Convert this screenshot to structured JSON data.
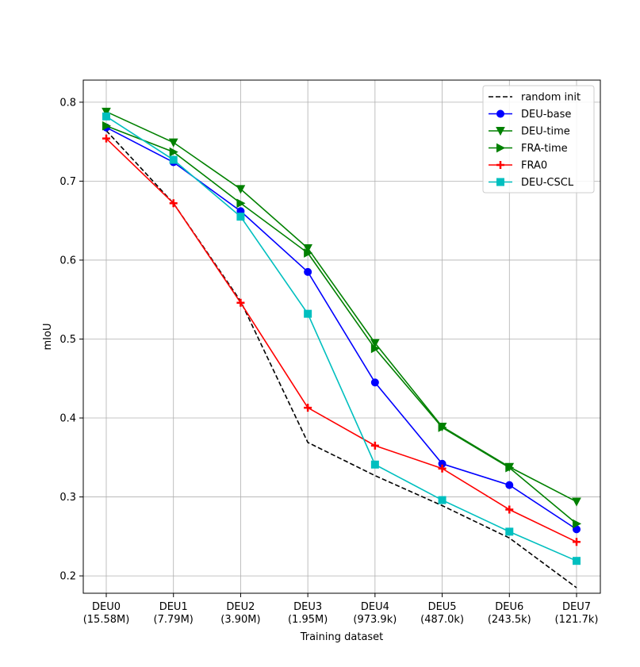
{
  "chart_data": {
    "type": "line",
    "title": "",
    "xlabel": "Training dataset",
    "ylabel": "mIoU",
    "categories": [
      {
        "name": "DEU0",
        "size": "(15.58M)"
      },
      {
        "name": "DEU1",
        "size": "(7.79M)"
      },
      {
        "name": "DEU2",
        "size": "(3.90M)"
      },
      {
        "name": "DEU3",
        "size": "(1.95M)"
      },
      {
        "name": "DEU4",
        "size": "(973.9k)"
      },
      {
        "name": "DEU5",
        "size": "(487.0k)"
      },
      {
        "name": "DEU6",
        "size": "(243.5k)"
      },
      {
        "name": "DEU7",
        "size": "(121.7k)"
      }
    ],
    "ylim": [
      0.178,
      0.828
    ],
    "yticks": [
      0.2,
      0.3,
      0.4,
      0.5,
      0.6,
      0.7,
      0.8
    ],
    "ytick_labels": [
      "0.2",
      "0.3",
      "0.4",
      "0.5",
      "0.6",
      "0.7",
      "0.8"
    ],
    "grid": true,
    "legend_position": "top-right",
    "series": [
      {
        "name": "random init",
        "color": "#000000",
        "linestyle": "dashed",
        "marker": "none",
        "values": [
          0.764,
          0.672,
          0.548,
          0.369,
          0.327,
          0.289,
          0.248,
          0.185
        ]
      },
      {
        "name": "DEU-base",
        "color": "#0000ff",
        "linestyle": "solid",
        "marker": "circle",
        "values": [
          0.768,
          0.724,
          0.662,
          0.585,
          0.445,
          0.342,
          0.315,
          0.259
        ]
      },
      {
        "name": "DEU-time",
        "color": "#008000",
        "linestyle": "solid",
        "marker": "triangle-down",
        "values": [
          0.788,
          0.749,
          0.69,
          0.615,
          0.495,
          0.389,
          0.338,
          0.294
        ]
      },
      {
        "name": "FRA-time",
        "color": "#008000",
        "linestyle": "solid",
        "marker": "triangle-right",
        "values": [
          0.77,
          0.737,
          0.672,
          0.609,
          0.488,
          0.388,
          0.337,
          0.266
        ]
      },
      {
        "name": "FRA0",
        "color": "#ff0000",
        "linestyle": "solid",
        "marker": "plus",
        "values": [
          0.754,
          0.672,
          0.546,
          0.413,
          0.365,
          0.336,
          0.284,
          0.243
        ]
      },
      {
        "name": "DEU-CSCL",
        "color": "#00bfbf",
        "linestyle": "solid",
        "marker": "square",
        "values": [
          0.782,
          0.727,
          0.655,
          0.532,
          0.341,
          0.296,
          0.256,
          0.219
        ]
      }
    ]
  }
}
